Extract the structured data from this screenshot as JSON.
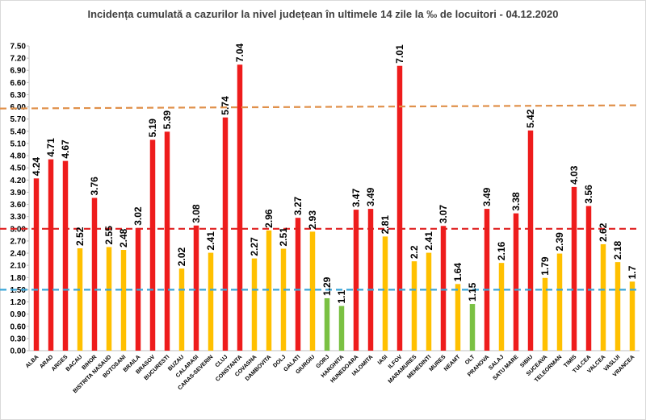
{
  "chart_data": {
    "type": "bar",
    "title": "Incidența cumulată a cazurilor la nivel județean în ultimele 14 zile la ‰ de locuitori - 04.12.2020",
    "xlabel": "",
    "ylabel": "",
    "ylim": [
      0,
      7.5
    ],
    "ytick_step": 0.3,
    "grid": false,
    "legend": "none",
    "categories": [
      "ALBA",
      "ARAD",
      "ARGES",
      "BACAU",
      "BIHOR",
      "BISTRITA NASAUD",
      "BOTOSANI",
      "BRAILA",
      "BRASOV",
      "BUCURESTI",
      "BUZAU",
      "CALARASI",
      "CARAS-SEVERIN",
      "CLUJ",
      "CONSTANTA",
      "COVASNA",
      "DAMBOVITA",
      "DOLJ",
      "GALATI",
      "GIURGIU",
      "GORJ",
      "HARGHITA",
      "HUNEDOARA",
      "IALOMITA",
      "IASI",
      "ILFOV",
      "MARAMURES",
      "MEHEDINTI",
      "MURES",
      "NEAMT",
      "OLT",
      "PRAHOVA",
      "SALAJ",
      "SATU MARE",
      "SIBIU",
      "SUCEAVA",
      "TELEORMAN",
      "TIMIS",
      "TULCEA",
      "VALCEA",
      "VASLUI",
      "VRANCEA"
    ],
    "values": [
      4.24,
      4.71,
      4.67,
      2.52,
      3.76,
      2.55,
      2.48,
      3.02,
      5.19,
      5.39,
      2.02,
      3.08,
      2.41,
      5.74,
      7.04,
      2.27,
      2.96,
      2.51,
      3.27,
      2.93,
      1.29,
      1.1,
      3.47,
      3.49,
      2.81,
      7.01,
      2.2,
      2.41,
      3.07,
      1.64,
      1.15,
      3.49,
      2.16,
      3.38,
      5.42,
      1.79,
      2.39,
      4.03,
      3.56,
      2.62,
      2.18,
      1.7
    ],
    "value_labels": [
      "4.24",
      "4.71",
      "4.67",
      "2.52",
      "3.76",
      "2.55",
      "2.48",
      "3.02",
      "5.19",
      "5.39",
      "2.02",
      "3.08",
      "2.41",
      "5.74",
      "7.04",
      "2.27",
      "2.96",
      "2.51",
      "3.27",
      "2.93",
      "1.29",
      "1.1",
      "3.47",
      "3.49",
      "2.81",
      "7.01",
      "2.2",
      "2.41",
      "3.07",
      "1.64",
      "1.15",
      "3.49",
      "2.16",
      "3.38",
      "5.42",
      "1.79",
      "2.39",
      "4.03",
      "3.56",
      "2.62",
      "2.18",
      "1.7"
    ],
    "thresholds": [
      {
        "value": 1.5,
        "color": "#3aa6d8"
      },
      {
        "value": 3.0,
        "color": "#e02020"
      },
      {
        "value": 6.0,
        "color": "#e0904a"
      }
    ],
    "colors": {
      "high": "#ee1c1c",
      "medium": "#ffc000",
      "low": "#7ac143"
    }
  }
}
